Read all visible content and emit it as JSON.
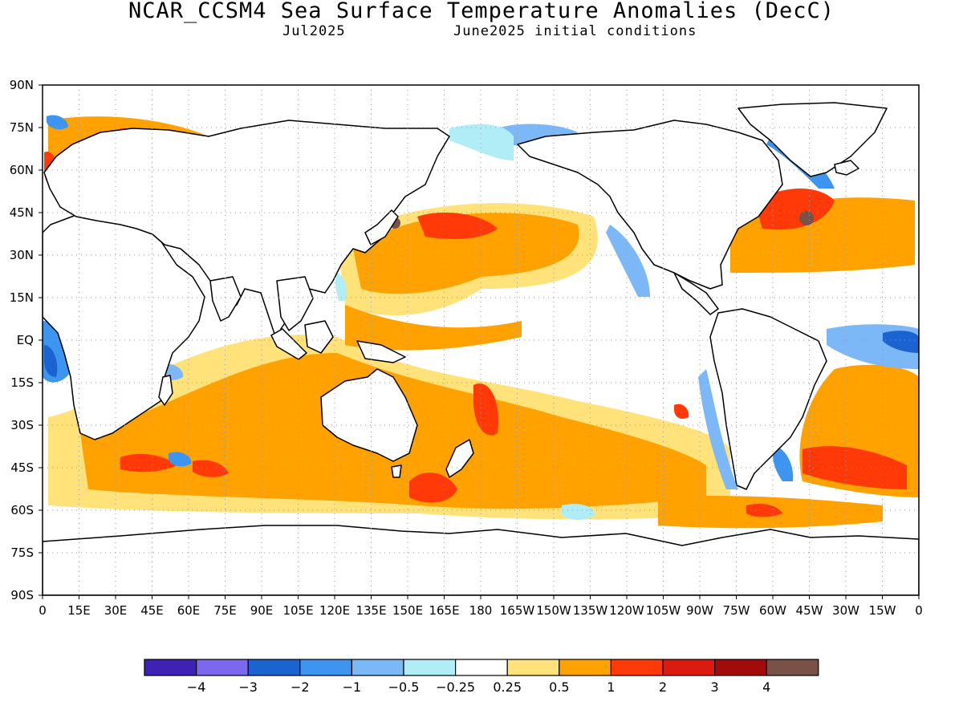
{
  "title": "NCAR_CCSM4 Sea Surface Temperature Anomalies (DecC)",
  "subtitle_left": "Jul2025",
  "subtitle_right": "June2025 initial conditions",
  "map": {
    "lat_labels": [
      "90N",
      "75N",
      "60N",
      "45N",
      "30N",
      "15N",
      "EQ",
      "15S",
      "30S",
      "45S",
      "60S",
      "75S",
      "90S"
    ],
    "lon_labels": [
      "0",
      "15E",
      "30E",
      "45E",
      "60E",
      "75E",
      "90E",
      "105E",
      "120E",
      "135E",
      "150E",
      "165E",
      "180",
      "165W",
      "150W",
      "135W",
      "120W",
      "105W",
      "90W",
      "75W",
      "60W",
      "45W",
      "30W",
      "15W",
      "0"
    ]
  },
  "colorbar": {
    "colors": [
      "#3f21b5",
      "#7b68ee",
      "#1a63d1",
      "#3d95f0",
      "#7cb8f7",
      "#b0edf7",
      "#ffffff",
      "#ffe27a",
      "#ffa200",
      "#ff3a08",
      "#dd1a10",
      "#a30a0a",
      "#7a5147"
    ],
    "labels": [
      "−4",
      "−3",
      "−2",
      "−1",
      "−0.5",
      "−0.25",
      "0.25",
      "0.5",
      "1",
      "2",
      "3",
      "4"
    ]
  },
  "colors": {
    "land_outline": "#000000",
    "grid_dots": "#9a9a9a"
  }
}
